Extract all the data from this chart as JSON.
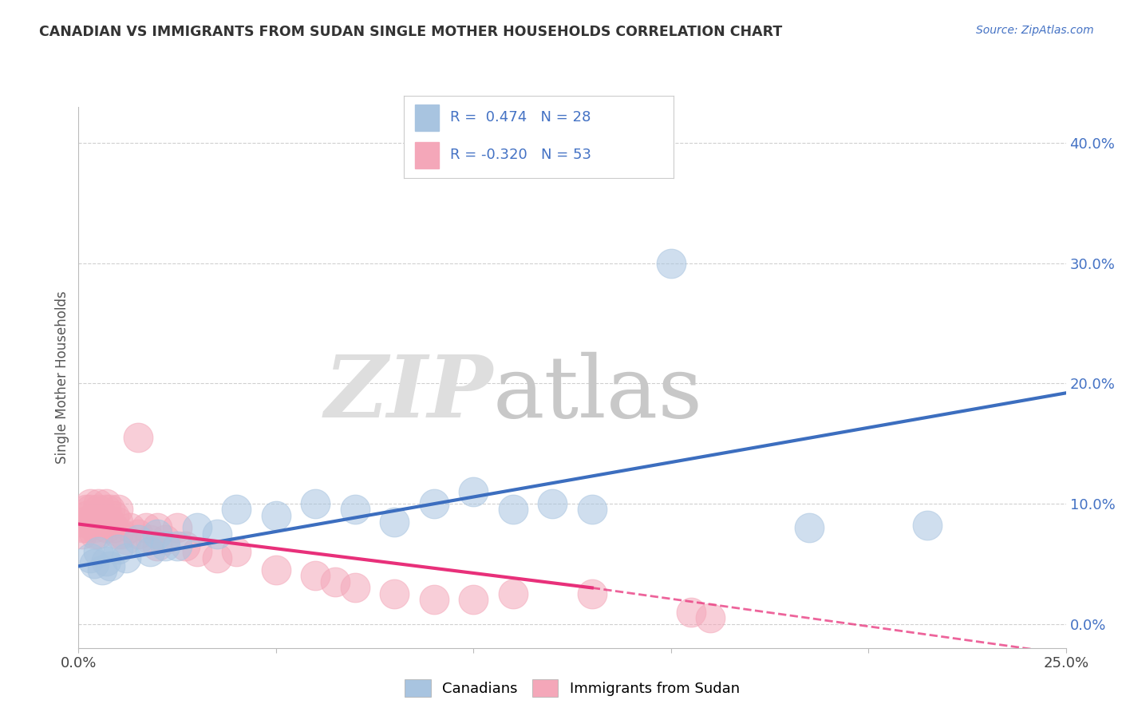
{
  "title": "CANADIAN VS IMMIGRANTS FROM SUDAN SINGLE MOTHER HOUSEHOLDS CORRELATION CHART",
  "source": "Source: ZipAtlas.com",
  "ylabel": "Single Mother Households",
  "right_yticks": [
    "40.0%",
    "30.0%",
    "20.0%",
    "10.0%",
    "0.0%"
  ],
  "right_ytick_vals": [
    0.4,
    0.3,
    0.2,
    0.1,
    0.0
  ],
  "xlim": [
    0.0,
    0.25
  ],
  "ylim": [
    -0.02,
    0.43
  ],
  "canadians_R": 0.474,
  "canadians_N": 28,
  "sudan_R": -0.32,
  "sudan_N": 53,
  "canadians_color": "#a8c4e0",
  "sudan_color": "#f4a7b9",
  "canadians_line_color": "#3c6ebf",
  "sudan_line_color": "#e8307a",
  "legend_label_canadian": "Canadians",
  "legend_label_sudan": "Immigrants from Sudan",
  "canadians_line_x0": 0.0,
  "canadians_line_y0": 0.048,
  "canadians_line_x1": 0.25,
  "canadians_line_y1": 0.192,
  "sudan_line_x0": 0.0,
  "sudan_line_y0": 0.083,
  "sudan_line_x1_solid": 0.13,
  "sudan_line_y1_solid": 0.03,
  "sudan_line_x1_dash": 0.25,
  "sudan_line_y1_dash": -0.025,
  "canadians_x": [
    0.003,
    0.004,
    0.005,
    0.006,
    0.007,
    0.008,
    0.01,
    0.012,
    0.015,
    0.018,
    0.02,
    0.022,
    0.025,
    0.03,
    0.035,
    0.04,
    0.05,
    0.06,
    0.07,
    0.08,
    0.09,
    0.1,
    0.11,
    0.12,
    0.13,
    0.15,
    0.185,
    0.215
  ],
  "canadians_y": [
    0.055,
    0.05,
    0.06,
    0.045,
    0.052,
    0.048,
    0.062,
    0.055,
    0.07,
    0.06,
    0.075,
    0.065,
    0.065,
    0.08,
    0.075,
    0.095,
    0.09,
    0.1,
    0.095,
    0.085,
    0.1,
    0.11,
    0.095,
    0.1,
    0.095,
    0.3,
    0.08,
    0.082
  ],
  "sudan_x": [
    0.001,
    0.001,
    0.001,
    0.002,
    0.002,
    0.002,
    0.003,
    0.003,
    0.003,
    0.004,
    0.004,
    0.004,
    0.005,
    0.005,
    0.005,
    0.006,
    0.006,
    0.007,
    0.007,
    0.007,
    0.008,
    0.008,
    0.009,
    0.009,
    0.01,
    0.01,
    0.01,
    0.011,
    0.012,
    0.013,
    0.015,
    0.015,
    0.017,
    0.018,
    0.02,
    0.02,
    0.022,
    0.025,
    0.027,
    0.03,
    0.035,
    0.04,
    0.05,
    0.06,
    0.065,
    0.07,
    0.08,
    0.09,
    0.1,
    0.11,
    0.13,
    0.155,
    0.16
  ],
  "sudan_y": [
    0.075,
    0.08,
    0.085,
    0.09,
    0.08,
    0.095,
    0.085,
    0.095,
    0.1,
    0.075,
    0.08,
    0.09,
    0.095,
    0.1,
    0.075,
    0.085,
    0.09,
    0.095,
    0.08,
    0.1,
    0.085,
    0.095,
    0.08,
    0.09,
    0.075,
    0.085,
    0.095,
    0.075,
    0.07,
    0.08,
    0.155,
    0.075,
    0.08,
    0.07,
    0.065,
    0.08,
    0.07,
    0.08,
    0.065,
    0.06,
    0.055,
    0.06,
    0.045,
    0.04,
    0.035,
    0.03,
    0.025,
    0.02,
    0.02,
    0.025,
    0.025,
    0.01,
    0.005
  ],
  "background_color": "#ffffff",
  "grid_color": "#d0d0d0"
}
